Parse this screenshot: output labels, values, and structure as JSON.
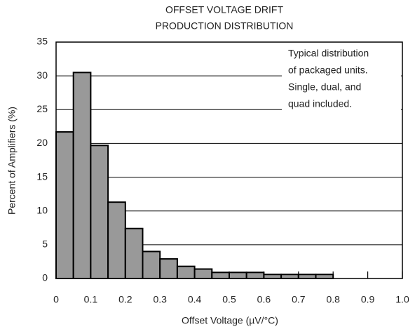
{
  "chart_data": {
    "type": "histogram",
    "title": [
      "OFFSET VOLTAGE DRIFT",
      "PRODUCTION DISTRIBUTION"
    ],
    "x_label": "Offset Voltage (µV/°C)",
    "y_label": "Percent of Amplifiers (%)",
    "annotation": [
      "Typical distribution",
      "of packaged units.",
      "Single, dual, and",
      "quad included."
    ],
    "bins": [
      0,
      0.05,
      0.1,
      0.15,
      0.2,
      0.25,
      0.3,
      0.35,
      0.4,
      0.45,
      0.5,
      0.55,
      0.6,
      0.65,
      0.7,
      0.75,
      0.8
    ],
    "values": [
      21.7,
      30.5,
      19.7,
      11.3,
      7.4,
      4.0,
      2.9,
      1.8,
      1.4,
      0.9,
      0.9,
      0.9,
      0.6,
      0.6,
      0.6,
      0.6
    ],
    "color": "#999999",
    "xlim": [
      0,
      1.0
    ],
    "xticks": [
      0,
      0.1,
      0.2,
      0.3,
      0.4,
      0.5,
      0.6,
      0.7,
      0.8,
      0.9,
      {
        "value": 1.0,
        "label": "1.0"
      }
    ],
    "ylim": [
      0,
      35
    ],
    "yticks": [
      0,
      5,
      10,
      15,
      20,
      25,
      30,
      35
    ],
    "grid": true
  }
}
